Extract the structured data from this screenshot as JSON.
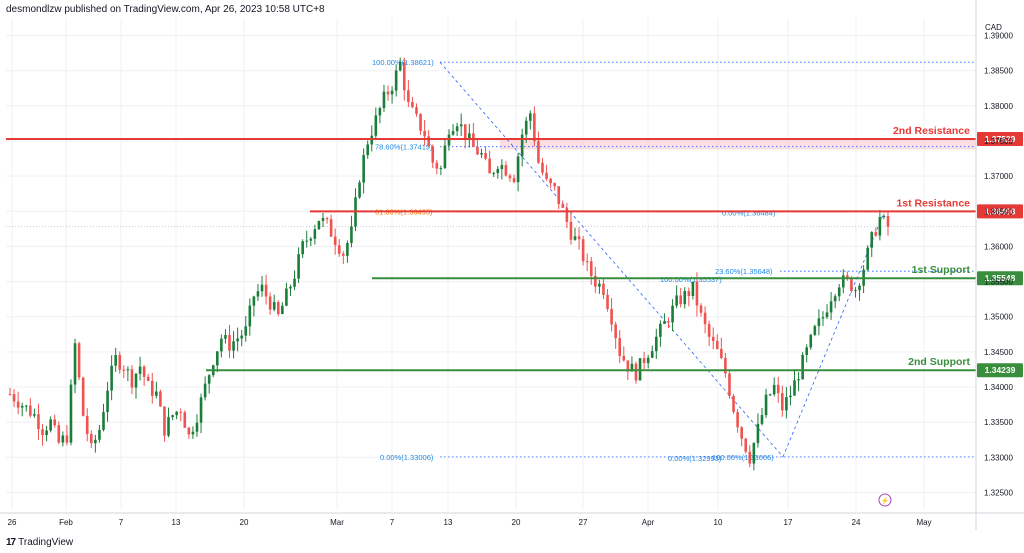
{
  "header": {
    "publisher": "desmondlzw published on TradingView.com, Apr 26, 2023 10:58 UTC+8"
  },
  "brand": {
    "logo_text": "17",
    "name": "TradingView"
  },
  "colors": {
    "up": "#26a69a",
    "up_dark": "#1b7d3a",
    "down": "#ef5350",
    "resistance": "#e53935",
    "support": "#388e3c",
    "fib": "#2962ff",
    "fib_text": "#1e88e5",
    "fib_orange": "#f57c00",
    "resistance_zone": "#f8c9d0",
    "axis_text": "#131722",
    "grid": "#eef0f3"
  },
  "chart_data": {
    "type": "candlestick",
    "currency": "CAD",
    "ylim": [
      1.3225,
      1.3925
    ],
    "y_ticks": [
      "1.39000",
      "1.38500",
      "1.38000",
      "1.37500",
      "1.37000",
      "1.36500",
      "1.36000",
      "1.35500",
      "1.35000",
      "1.34500",
      "1.34000",
      "1.33500",
      "1.33000",
      "1.32500"
    ],
    "x_ticks": [
      "26",
      "Feb",
      "7",
      "13",
      "20",
      "Mar",
      "7",
      "13",
      "20",
      "27",
      "Apr",
      "10",
      "17",
      "24",
      "May"
    ],
    "horizontal_levels": [
      {
        "label": "2nd Resistance",
        "price_label": "1.37529",
        "value": 1.37529,
        "color": "resistance"
      },
      {
        "label": "1st Resistance",
        "price_label": "1.36498",
        "value": 1.36498,
        "color": "resistance"
      },
      {
        "label": "1st Support",
        "price_label": "1.35548",
        "value": 1.35548,
        "color": "support"
      },
      {
        "label": "2nd Support",
        "price_label": "1.34239",
        "value": 1.34239,
        "color": "support"
      }
    ],
    "fib_labels": [
      {
        "text": "100.00%(1.38621)",
        "value": 1.38621
      },
      {
        "text": "78.60%(1.37419)",
        "value": 1.37419
      },
      {
        "text": "61.80%(1.36495)",
        "value": 1.36495
      },
      {
        "text": "0.00%(1.36484)",
        "value": 1.36484
      },
      {
        "text": "23.60%(1.35648)",
        "value": 1.35648
      },
      {
        "text": "100.00%(1.35537)",
        "value": 1.35537
      },
      {
        "text": "0.00%(1.33006)",
        "value": 1.33006
      },
      {
        "text": "0.00%(1.32993)",
        "value": 1.32993
      },
      {
        "text": "100.00%(1.33006)",
        "value": 1.33006
      }
    ],
    "last_price": 1.3628,
    "price_path": [
      [
        0,
        1.339
      ],
      [
        2,
        1.338
      ],
      [
        4,
        1.337
      ],
      [
        6,
        1.336
      ],
      [
        8,
        1.334
      ],
      [
        10,
        1.335
      ],
      [
        12,
        1.332
      ],
      [
        14,
        1.333
      ],
      [
        16,
        1.346
      ],
      [
        18,
        1.336
      ],
      [
        20,
        1.331
      ],
      [
        22,
        1.334
      ],
      [
        24,
        1.34
      ],
      [
        26,
        1.344
      ],
      [
        28,
        1.343
      ],
      [
        30,
        1.341
      ],
      [
        32,
        1.343
      ],
      [
        34,
        1.34
      ],
      [
        36,
        1.339
      ],
      [
        38,
        1.334
      ],
      [
        40,
        1.336
      ],
      [
        42,
        1.337
      ],
      [
        44,
        1.333
      ],
      [
        46,
        1.336
      ],
      [
        48,
        1.34
      ],
      [
        50,
        1.344
      ],
      [
        52,
        1.347
      ],
      [
        54,
        1.346
      ],
      [
        56,
        1.347
      ],
      [
        58,
        1.348
      ],
      [
        60,
        1.353
      ],
      [
        62,
        1.354
      ],
      [
        64,
        1.352
      ],
      [
        66,
        1.35
      ],
      [
        68,
        1.353
      ],
      [
        70,
        1.356
      ],
      [
        72,
        1.36
      ],
      [
        74,
        1.362
      ],
      [
        76,
        1.364
      ],
      [
        78,
        1.363
      ],
      [
        80,
        1.361
      ],
      [
        82,
        1.359
      ],
      [
        84,
        1.362
      ],
      [
        86,
        1.37
      ],
      [
        88,
        1.375
      ],
      [
        90,
        1.378
      ],
      [
        92,
        1.381
      ],
      [
        94,
        1.383
      ],
      [
        96,
        1.386
      ],
      [
        98,
        1.38
      ],
      [
        100,
        1.378
      ],
      [
        102,
        1.376
      ],
      [
        104,
        1.372
      ],
      [
        106,
        1.371
      ],
      [
        108,
        1.377
      ],
      [
        110,
        1.378
      ],
      [
        112,
        1.376
      ],
      [
        114,
        1.374
      ],
      [
        116,
        1.373
      ],
      [
        118,
        1.37
      ],
      [
        120,
        1.372
      ],
      [
        122,
        1.371
      ],
      [
        124,
        1.37
      ],
      [
        126,
        1.376
      ],
      [
        128,
        1.379
      ],
      [
        130,
        1.372
      ],
      [
        132,
        1.369
      ],
      [
        134,
        1.368
      ],
      [
        136,
        1.365
      ],
      [
        138,
        1.362
      ],
      [
        140,
        1.36
      ],
      [
        142,
        1.357
      ],
      [
        144,
        1.355
      ],
      [
        146,
        1.354
      ],
      [
        148,
        1.35
      ],
      [
        150,
        1.345
      ],
      [
        152,
        1.343
      ],
      [
        154,
        1.342
      ],
      [
        156,
        1.344
      ],
      [
        158,
        1.346
      ],
      [
        160,
        1.348
      ],
      [
        162,
        1.35
      ],
      [
        164,
        1.352
      ],
      [
        166,
        1.353
      ],
      [
        168,
        1.354
      ],
      [
        170,
        1.35
      ],
      [
        172,
        1.347
      ],
      [
        174,
        1.345
      ],
      [
        176,
        1.342
      ],
      [
        178,
        1.337
      ],
      [
        180,
        1.333
      ],
      [
        182,
        1.33
      ],
      [
        184,
        1.334
      ],
      [
        186,
        1.338
      ],
      [
        188,
        1.34
      ],
      [
        190,
        1.337
      ],
      [
        192,
        1.339
      ],
      [
        194,
        1.342
      ],
      [
        196,
        1.345
      ],
      [
        198,
        1.348
      ],
      [
        200,
        1.35
      ],
      [
        202,
        1.353
      ],
      [
        204,
        1.355
      ],
      [
        206,
        1.355
      ],
      [
        208,
        1.354
      ],
      [
        210,
        1.357
      ],
      [
        212,
        1.361
      ],
      [
        214,
        1.364
      ],
      [
        216,
        1.3628
      ]
    ]
  }
}
